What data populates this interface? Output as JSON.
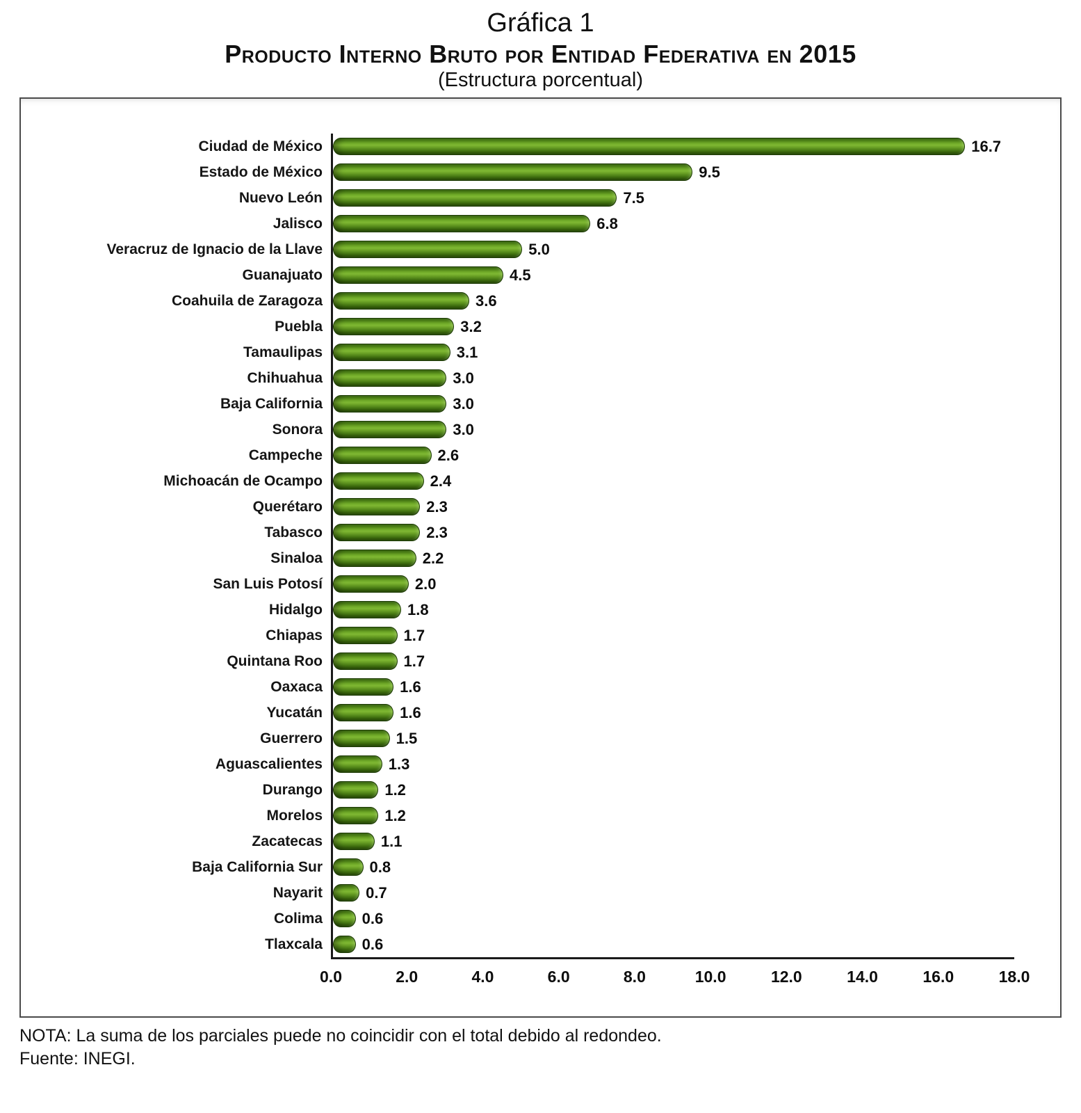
{
  "header": {
    "title": "Gráfica 1",
    "subtitle": "Producto Interno Bruto por Entidad Federativa en 2015",
    "subtitle2": "(Estructura porcentual)"
  },
  "chart_data": {
    "type": "bar",
    "orientation": "horizontal",
    "title": "Producto Interno Bruto por Entidad Federativa en 2015",
    "subtitle": "(Estructura porcentual)",
    "categories": [
      "Ciudad de México",
      "Estado de México",
      "Nuevo León",
      "Jalisco",
      "Veracruz de Ignacio de la Llave",
      "Guanajuato",
      "Coahuila de Zaragoza",
      "Puebla",
      "Tamaulipas",
      "Chihuahua",
      "Baja California",
      "Sonora",
      "Campeche",
      "Michoacán de Ocampo",
      "Querétaro",
      "Tabasco",
      "Sinaloa",
      "San Luis Potosí",
      "Hidalgo",
      "Chiapas",
      "Quintana Roo",
      "Oaxaca",
      "Yucatán",
      "Guerrero",
      "Aguascalientes",
      "Durango",
      "Morelos",
      "Zacatecas",
      "Baja California Sur",
      "Nayarit",
      "Colima",
      "Tlaxcala"
    ],
    "values": [
      16.7,
      9.5,
      7.5,
      6.8,
      5.0,
      4.5,
      3.6,
      3.2,
      3.1,
      3.0,
      3.0,
      3.0,
      2.6,
      2.4,
      2.3,
      2.3,
      2.2,
      2.0,
      1.8,
      1.7,
      1.7,
      1.6,
      1.6,
      1.5,
      1.3,
      1.2,
      1.2,
      1.1,
      0.8,
      0.7,
      0.6,
      0.6
    ],
    "xlabel": "",
    "ylabel": "",
    "xlim": [
      0,
      18
    ],
    "xticks": [
      "0.0",
      "2.0",
      "4.0",
      "6.0",
      "8.0",
      "10.0",
      "12.0",
      "14.0",
      "16.0",
      "18.0"
    ],
    "grid": false,
    "legend": false,
    "value_labels": true,
    "bar_color": "#5a8f1b"
  },
  "footer": {
    "note": "NOTA: La suma de los parciales puede no coincidir con el total debido al redondeo.",
    "source": "Fuente: INEGI."
  }
}
